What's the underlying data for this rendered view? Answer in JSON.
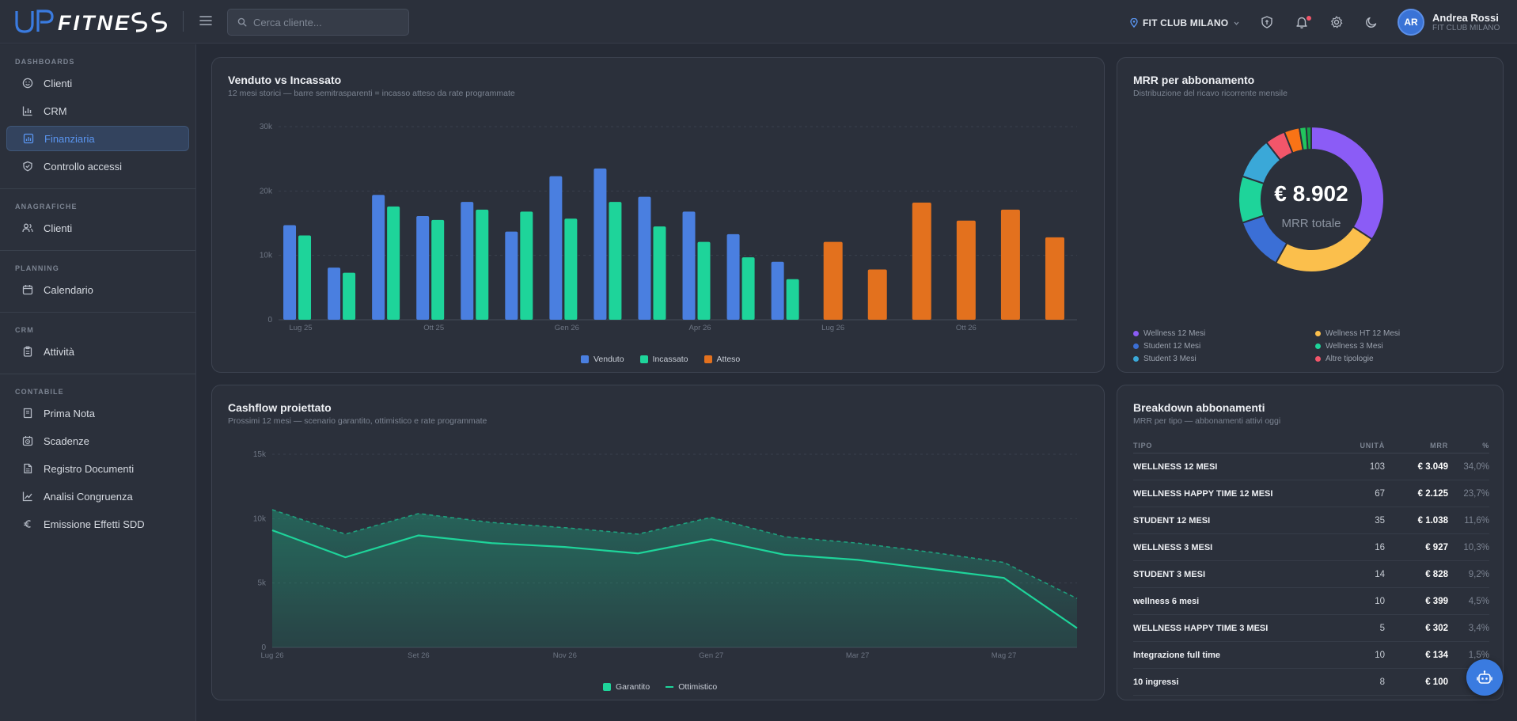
{
  "brand": {
    "name": "UPFITNESS"
  },
  "header": {
    "search_placeholder": "Cerca cliente...",
    "club": "FIT CLUB MILANO",
    "user": {
      "initials": "AR",
      "name": "Andrea Rossi",
      "club": "FIT CLUB MILANO"
    }
  },
  "sidebar": {
    "sections": [
      {
        "title": "DASHBOARDS",
        "items": [
          {
            "label": "Clienti",
            "icon": "smile-icon",
            "active": false
          },
          {
            "label": "CRM",
            "icon": "bar-chart-icon",
            "active": false
          },
          {
            "label": "Finanziaria",
            "icon": "finance-icon",
            "active": true
          },
          {
            "label": "Controllo accessi",
            "icon": "shield-check-icon",
            "active": false
          }
        ]
      },
      {
        "title": "ANAGRAFICHE",
        "items": [
          {
            "label": "Clienti",
            "icon": "users-icon",
            "active": false
          }
        ]
      },
      {
        "title": "PLANNING",
        "items": [
          {
            "label": "Calendario",
            "icon": "calendar-icon",
            "active": false
          }
        ]
      },
      {
        "title": "CRM",
        "items": [
          {
            "label": "Attività",
            "icon": "clipboard-icon",
            "active": false
          }
        ]
      },
      {
        "title": "CONTABILE",
        "items": [
          {
            "label": "Prima Nota",
            "icon": "book-icon",
            "active": false
          },
          {
            "label": "Scadenze",
            "icon": "clock-icon",
            "active": false
          },
          {
            "label": "Registro Documenti",
            "icon": "document-icon",
            "active": false
          },
          {
            "label": "Analisi Congruenza",
            "icon": "trend-icon",
            "active": false
          },
          {
            "label": "Emissione Effetti SDD",
            "icon": "euro-icon",
            "active": false
          }
        ]
      }
    ]
  },
  "cards": {
    "venduto": {
      "title": "Venduto vs Incassato",
      "subtitle": "12 mesi storici — barre semitrasparenti = incasso atteso da rate programmate"
    },
    "mrr": {
      "title": "MRR per abbonamento",
      "subtitle": "Distribuzione del ricavo ricorrente mensile",
      "total_value": "€ 8.902",
      "total_label": "MRR totale"
    },
    "cashflow": {
      "title": "Cashflow proiettato",
      "subtitle": "Prossimi 12 mesi — scenario garantito, ottimistico e rate programmate"
    },
    "breakdown": {
      "title": "Breakdown abbonamenti",
      "subtitle": "MRR per tipo — abbonamenti attivi oggi",
      "headers": [
        "TIPO",
        "UNITÀ",
        "MRR",
        "%"
      ],
      "rows": [
        {
          "tipo": "WELLNESS 12 MESI",
          "unita": "103",
          "mrr": "€ 3.049",
          "pct": "34,0%"
        },
        {
          "tipo": "WELLNESS HAPPY TIME 12 MESI",
          "unita": "67",
          "mrr": "€ 2.125",
          "pct": "23,7%"
        },
        {
          "tipo": "STUDENT 12 MESI",
          "unita": "35",
          "mrr": "€ 1.038",
          "pct": "11,6%"
        },
        {
          "tipo": "WELLNESS 3 MESI",
          "unita": "16",
          "mrr": "€ 927",
          "pct": "10,3%"
        },
        {
          "tipo": "STUDENT 3 MESI",
          "unita": "14",
          "mrr": "€ 828",
          "pct": "9,2%"
        },
        {
          "tipo": "wellness 6 mesi",
          "unita": "10",
          "mrr": "€ 399",
          "pct": "4,5%"
        },
        {
          "tipo": "WELLNESS HAPPY TIME 3 MESI",
          "unita": "5",
          "mrr": "€ 302",
          "pct": "3,4%"
        },
        {
          "tipo": "Integrazione full time",
          "unita": "10",
          "mrr": "€ 134",
          "pct": "1,5%"
        },
        {
          "tipo": "10 ingressi",
          "unita": "8",
          "mrr": "€ 100",
          "pct": ""
        }
      ]
    }
  },
  "colors": {
    "venduto": "#4a7fe0",
    "incassato": "#1ed49a",
    "atteso": "#e3711e",
    "accent": "#3a7be0"
  },
  "chart_data": [
    {
      "type": "bar",
      "title": "Venduto vs Incassato",
      "x_tick_labels": [
        "Lug 25",
        "Ott 25",
        "Gen 26",
        "Apr 26",
        "Lug 26",
        "Ott 26"
      ],
      "y_tick_labels": [
        "0",
        "10k",
        "20k",
        "30k"
      ],
      "ylim": [
        0,
        30000
      ],
      "grid": true,
      "legend_position": "bottom-center",
      "series": [
        {
          "name": "Venduto",
          "values": [
            14700,
            8100,
            19400,
            16100,
            18300,
            13700,
            22300,
            23500,
            19100,
            16800,
            13300,
            9000,
            null,
            null,
            null,
            null,
            null,
            null
          ]
        },
        {
          "name": "Incassato",
          "values": [
            13100,
            7300,
            17600,
            15500,
            17100,
            16800,
            15700,
            18300,
            14500,
            12100,
            9700,
            6300,
            null,
            null,
            null,
            null,
            null,
            null
          ]
        },
        {
          "name": "Atteso",
          "values": [
            null,
            null,
            null,
            null,
            null,
            null,
            null,
            null,
            null,
            null,
            null,
            null,
            12100,
            7800,
            18200,
            15400,
            17100,
            12800
          ]
        }
      ]
    },
    {
      "type": "pie",
      "title": "MRR per abbonamento",
      "center_label": "€ 8.902",
      "legend_position": "bottom",
      "categories": [
        "Wellness 12 Mesi",
        "Wellness HT 12 Mesi",
        "Student 12 Mesi",
        "Wellness 3 Mesi",
        "Student 3 Mesi",
        "Altre tipologie"
      ],
      "values": [
        34.0,
        23.7,
        11.6,
        10.3,
        9.2,
        11.2
      ],
      "colors": [
        "#8b5cf6",
        "#fbbf4c",
        "#3b6fd6",
        "#1ed49a",
        "#3aa8d8",
        "#f2566a"
      ],
      "extra_slices": {
        "values": [
          4.5,
          3.4,
          1.5,
          1.1
        ],
        "colors": [
          "#f2566a",
          "#f97316",
          "#22c55e",
          "#16a34a"
        ]
      }
    },
    {
      "type": "area",
      "title": "Cashflow proiettato",
      "x_tick_labels": [
        "Lug 26",
        "Set 26",
        "Nov 26",
        "Gen 27",
        "Mar 27",
        "Mag 27"
      ],
      "y_tick_labels": [
        "0",
        "5k",
        "10k",
        "15k"
      ],
      "ylim": [
        0,
        15000
      ],
      "grid": true,
      "legend_position": "bottom-center",
      "series": [
        {
          "name": "Garantito",
          "values": [
            9100,
            7000,
            8700,
            8100,
            7800,
            7300,
            8400,
            7200,
            6800,
            6100,
            5400,
            1500
          ]
        },
        {
          "name": "Ottimistico",
          "values": [
            10700,
            8800,
            10400,
            9700,
            9300,
            8800,
            10100,
            8600,
            8100,
            7400,
            6600,
            3800
          ]
        }
      ]
    }
  ]
}
